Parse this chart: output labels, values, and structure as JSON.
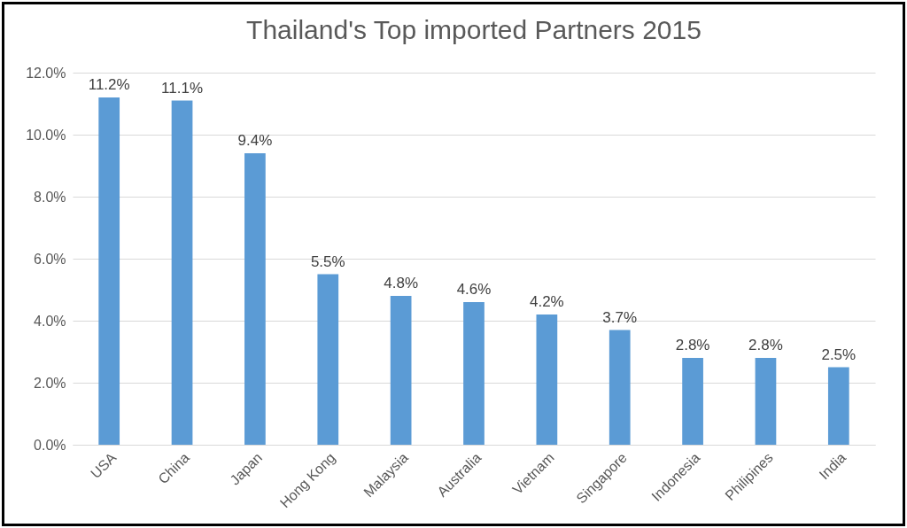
{
  "chart_data": {
    "type": "bar",
    "title": "Thailand's Top imported Partners 2015",
    "categories": [
      "USA",
      "China",
      "Japan",
      "Hong Kong",
      "Malaysia",
      "Australia",
      "Vietnam",
      "Singapore",
      "Indonesia",
      "Philipines",
      "India"
    ],
    "values": [
      11.2,
      11.1,
      9.4,
      5.5,
      4.8,
      4.6,
      4.2,
      3.7,
      2.8,
      2.8,
      2.5
    ],
    "value_labels": [
      "11.2%",
      "11.1%",
      "9.4%",
      "5.5%",
      "4.8%",
      "4.6%",
      "4.2%",
      "3.7%",
      "2.8%",
      "2.8%",
      "2.5%"
    ],
    "color": "#5b9bd5",
    "ylim": [
      0,
      12
    ],
    "yticks": [
      {
        "value": 0,
        "label": "0.0%"
      },
      {
        "value": 2,
        "label": "2.0%"
      },
      {
        "value": 4,
        "label": "4.0%"
      },
      {
        "value": 6,
        "label": "6.0%"
      },
      {
        "value": 8,
        "label": "8.0%"
      },
      {
        "value": 10,
        "label": "10.0%"
      },
      {
        "value": 12,
        "label": "12.0%"
      }
    ],
    "grid": "y"
  }
}
